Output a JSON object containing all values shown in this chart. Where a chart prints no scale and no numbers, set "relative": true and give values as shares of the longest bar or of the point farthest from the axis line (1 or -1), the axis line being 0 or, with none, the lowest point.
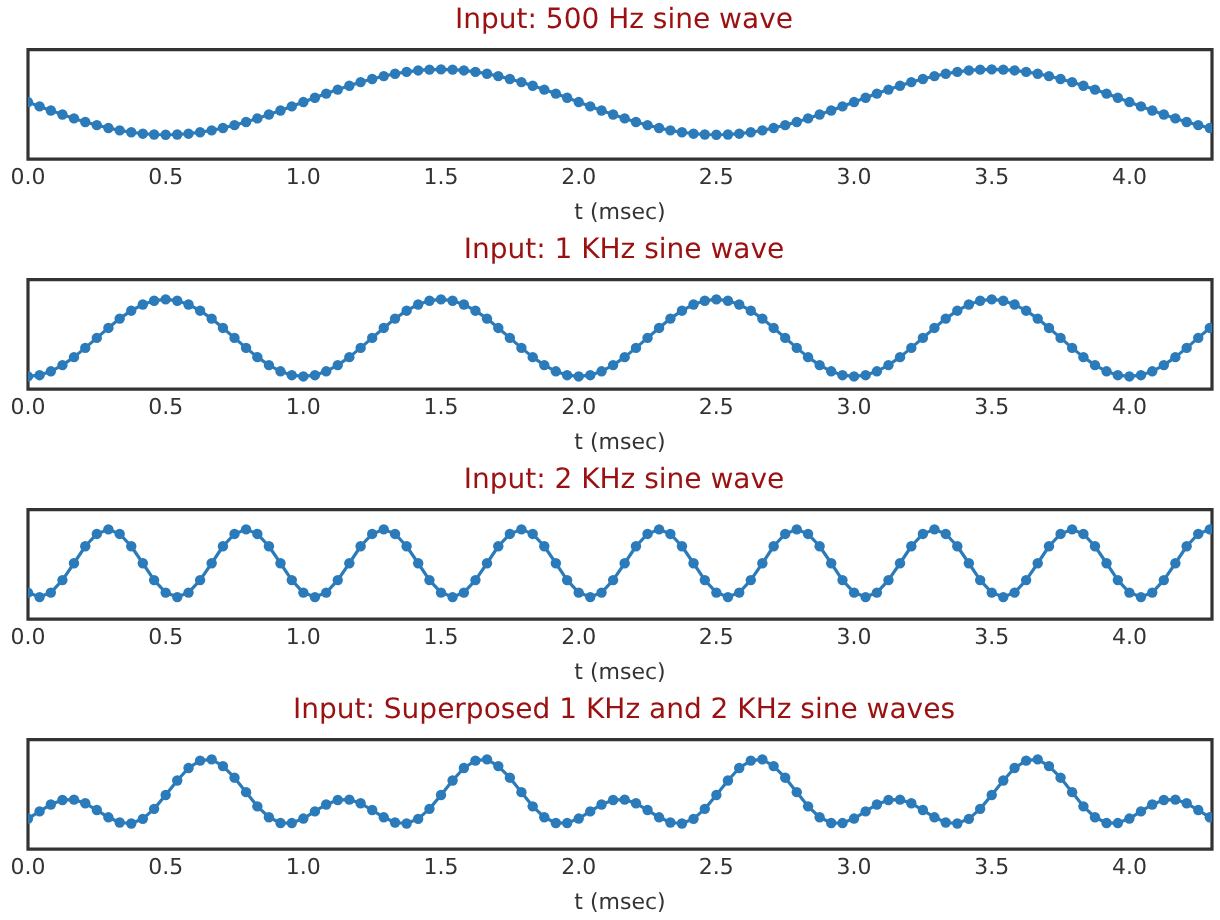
{
  "chart_data": [
    {
      "type": "line",
      "title": "Input: 500 Hz sine wave",
      "xlabel": "t (msec)",
      "relative": true,
      "marker": "circle",
      "line_style": "solid",
      "tick_labels": "x",
      "xlim": [
        0,
        4.3
      ],
      "xticks": [
        {
          "value": 0,
          "label": "0.0"
        },
        {
          "value": 0.5,
          "label": "0.5"
        },
        {
          "value": 1,
          "label": "1.0"
        },
        {
          "value": 1.5,
          "label": "1.5"
        },
        {
          "value": 2,
          "label": "2.0"
        },
        {
          "value": 2.5,
          "label": "2.5"
        },
        {
          "value": 3,
          "label": "3.0"
        },
        {
          "value": 3.5,
          "label": "3.5"
        },
        {
          "value": 4,
          "label": "4.0"
        }
      ],
      "x": [
        0,
        0.042,
        0.083,
        0.125,
        0.167,
        0.208,
        0.25,
        0.292,
        0.333,
        0.375,
        0.417,
        0.458,
        0.5,
        0.542,
        0.583,
        0.625,
        0.667,
        0.708,
        0.75,
        0.792,
        0.833,
        0.875,
        0.917,
        0.958,
        1,
        1.042,
        1.083,
        1.125,
        1.167,
        1.208,
        1.25,
        1.292,
        1.333,
        1.375,
        1.417,
        1.458,
        1.5,
        1.542,
        1.583,
        1.625,
        1.667,
        1.708,
        1.75,
        1.792,
        1.833,
        1.875,
        1.917,
        1.958,
        2,
        2.042,
        2.083,
        2.125,
        2.167,
        2.208,
        2.25,
        2.292,
        2.333,
        2.375,
        2.417,
        2.458,
        2.5,
        2.542,
        2.583,
        2.625,
        2.667,
        2.708,
        2.75,
        2.792,
        2.833,
        2.875,
        2.917,
        2.958,
        3,
        3.042,
        3.083,
        3.125,
        3.167,
        3.208,
        3.25,
        3.292,
        3.333,
        3.375,
        3.417,
        3.458,
        3.5,
        3.542,
        3.583,
        3.625,
        3.667,
        3.708,
        3.75,
        3.792,
        3.833,
        3.875,
        3.917,
        3.958,
        4,
        4.042,
        4.083,
        4.125,
        4.167,
        4.208,
        4.25,
        4.292
      ],
      "series": [
        {
          "color": "#2b7bba",
          "values": [
            0.636,
            0.588,
            0.542,
            0.497,
            0.454,
            0.414,
            0.379,
            0.347,
            0.321,
            0.3,
            0.284,
            0.275,
            0.272,
            0.275,
            0.284,
            0.3,
            0.321,
            0.347,
            0.379,
            0.414,
            0.454,
            0.497,
            0.542,
            0.588,
            0.636,
            0.684,
            0.73,
            0.775,
            0.818,
            0.858,
            0.893,
            0.925,
            0.951,
            0.972,
            0.988,
            0.997,
            1,
            0.997,
            0.988,
            0.972,
            0.951,
            0.925,
            0.893,
            0.858,
            0.818,
            0.775,
            0.73,
            0.684,
            0.636,
            0.588,
            0.542,
            0.497,
            0.454,
            0.414,
            0.379,
            0.347,
            0.321,
            0.3,
            0.284,
            0.275,
            0.272,
            0.275,
            0.284,
            0.3,
            0.321,
            0.347,
            0.379,
            0.414,
            0.454,
            0.497,
            0.542,
            0.588,
            0.636,
            0.684,
            0.73,
            0.775,
            0.818,
            0.858,
            0.893,
            0.925,
            0.951,
            0.972,
            0.988,
            0.997,
            1,
            0.997,
            0.988,
            0.972,
            0.951,
            0.925,
            0.893,
            0.858,
            0.818,
            0.775,
            0.73,
            0.684,
            0.636,
            0.588,
            0.542,
            0.497,
            0.454,
            0.414,
            0.379,
            0.347
          ]
        }
      ]
    },
    {
      "type": "line",
      "title": "Input: 1 KHz sine wave",
      "xlabel": "t (msec)",
      "relative": true,
      "marker": "circle",
      "line_style": "solid",
      "tick_labels": "x",
      "xlim": [
        0,
        4.3
      ],
      "xticks": [
        {
          "value": 0,
          "label": "0.0"
        },
        {
          "value": 0.5,
          "label": "0.5"
        },
        {
          "value": 1,
          "label": "1.0"
        },
        {
          "value": 1.5,
          "label": "1.5"
        },
        {
          "value": 2,
          "label": "2.0"
        },
        {
          "value": 2.5,
          "label": "2.5"
        },
        {
          "value": 3,
          "label": "3.0"
        },
        {
          "value": 3.5,
          "label": "3.5"
        },
        {
          "value": 4,
          "label": "4.0"
        }
      ],
      "x": [
        0,
        0.042,
        0.083,
        0.125,
        0.167,
        0.208,
        0.25,
        0.292,
        0.333,
        0.375,
        0.417,
        0.458,
        0.5,
        0.542,
        0.583,
        0.625,
        0.667,
        0.708,
        0.75,
        0.792,
        0.833,
        0.875,
        0.917,
        0.958,
        1,
        1.042,
        1.083,
        1.125,
        1.167,
        1.208,
        1.25,
        1.292,
        1.333,
        1.375,
        1.417,
        1.458,
        1.5,
        1.542,
        1.583,
        1.625,
        1.667,
        1.708,
        1.75,
        1.792,
        1.833,
        1.875,
        1.917,
        1.958,
        2,
        2.042,
        2.083,
        2.125,
        2.167,
        2.208,
        2.25,
        2.292,
        2.333,
        2.375,
        2.417,
        2.458,
        2.5,
        2.542,
        2.583,
        2.625,
        2.667,
        2.708,
        2.75,
        2.792,
        2.833,
        2.875,
        2.917,
        2.958,
        3,
        3.042,
        3.083,
        3.125,
        3.167,
        3.208,
        3.25,
        3.292,
        3.333,
        3.375,
        3.417,
        3.458,
        3.5,
        3.542,
        3.583,
        3.625,
        3.667,
        3.708,
        3.75,
        3.792,
        3.833,
        3.875,
        3.917,
        3.958,
        4,
        4.042,
        4.083,
        4.125,
        4.167,
        4.208,
        4.25,
        4.292
      ],
      "series": [
        {
          "color": "#2b7bba",
          "values": [
            0.142,
            0.156,
            0.199,
            0.268,
            0.357,
            0.46,
            0.571,
            0.682,
            0.786,
            0.874,
            0.943,
            0.985,
            1,
            0.985,
            0.943,
            0.874,
            0.786,
            0.682,
            0.571,
            0.46,
            0.357,
            0.268,
            0.199,
            0.156,
            0.142,
            0.156,
            0.199,
            0.268,
            0.357,
            0.46,
            0.571,
            0.682,
            0.786,
            0.874,
            0.943,
            0.985,
            1,
            0.985,
            0.943,
            0.874,
            0.786,
            0.682,
            0.571,
            0.46,
            0.357,
            0.268,
            0.199,
            0.156,
            0.142,
            0.156,
            0.199,
            0.268,
            0.357,
            0.46,
            0.571,
            0.682,
            0.786,
            0.874,
            0.943,
            0.985,
            1,
            0.985,
            0.943,
            0.874,
            0.786,
            0.682,
            0.571,
            0.46,
            0.357,
            0.268,
            0.199,
            0.156,
            0.142,
            0.156,
            0.199,
            0.268,
            0.357,
            0.46,
            0.571,
            0.682,
            0.786,
            0.874,
            0.943,
            0.985,
            1,
            0.985,
            0.943,
            0.874,
            0.786,
            0.682,
            0.571,
            0.46,
            0.357,
            0.268,
            0.199,
            0.156,
            0.142,
            0.156,
            0.199,
            0.268,
            0.357,
            0.46,
            0.571,
            0.682
          ]
        }
      ]
    },
    {
      "type": "line",
      "title": "Input: 2 KHz sine wave",
      "xlabel": "t (msec)",
      "relative": true,
      "marker": "circle",
      "line_style": "solid",
      "tick_labels": "x",
      "xlim": [
        0,
        4.3
      ],
      "xticks": [
        {
          "value": 0,
          "label": "0.0"
        },
        {
          "value": 0.5,
          "label": "0.5"
        },
        {
          "value": 1,
          "label": "1.0"
        },
        {
          "value": 1.5,
          "label": "1.5"
        },
        {
          "value": 2,
          "label": "2.0"
        },
        {
          "value": 2.5,
          "label": "2.5"
        },
        {
          "value": 3,
          "label": "3.0"
        },
        {
          "value": 3.5,
          "label": "3.5"
        },
        {
          "value": 4,
          "label": "4.0"
        }
      ],
      "x": [
        0,
        0.042,
        0.083,
        0.125,
        0.167,
        0.208,
        0.25,
        0.292,
        0.333,
        0.375,
        0.417,
        0.458,
        0.5,
        0.542,
        0.583,
        0.625,
        0.667,
        0.708,
        0.75,
        0.792,
        0.833,
        0.875,
        0.917,
        0.958,
        1,
        1.042,
        1.083,
        1.125,
        1.167,
        1.208,
        1.25,
        1.292,
        1.333,
        1.375,
        1.417,
        1.458,
        1.5,
        1.542,
        1.583,
        1.625,
        1.667,
        1.708,
        1.75,
        1.792,
        1.833,
        1.875,
        1.917,
        1.958,
        2,
        2.042,
        2.083,
        2.125,
        2.167,
        2.208,
        2.25,
        2.292,
        2.333,
        2.375,
        2.417,
        2.458,
        2.5,
        2.542,
        2.583,
        2.625,
        2.667,
        2.708,
        2.75,
        2.792,
        2.833,
        2.875,
        2.917,
        2.958,
        3,
        3.042,
        3.083,
        3.125,
        3.167,
        3.208,
        3.25,
        3.292,
        3.333,
        3.375,
        3.417,
        3.458,
        3.5,
        3.542,
        3.583,
        3.625,
        3.667,
        3.708,
        3.75,
        3.792,
        3.833,
        3.875,
        3.917,
        3.958,
        4,
        4.042,
        4.083,
        4.125,
        4.167,
        4.208,
        4.25,
        4.292
      ],
      "series": [
        {
          "color": "#2b7bba",
          "values": [
            0.296,
            0.246,
            0.296,
            0.435,
            0.623,
            0.812,
            0.949,
            1,
            0.949,
            0.812,
            0.623,
            0.435,
            0.296,
            0.246,
            0.296,
            0.435,
            0.623,
            0.812,
            0.949,
            1,
            0.949,
            0.812,
            0.623,
            0.435,
            0.296,
            0.246,
            0.296,
            0.435,
            0.623,
            0.812,
            0.949,
            1,
            0.949,
            0.812,
            0.623,
            0.435,
            0.296,
            0.246,
            0.296,
            0.435,
            0.623,
            0.812,
            0.949,
            1,
            0.949,
            0.812,
            0.623,
            0.435,
            0.296,
            0.246,
            0.296,
            0.435,
            0.623,
            0.812,
            0.949,
            1,
            0.949,
            0.812,
            0.623,
            0.435,
            0.296,
            0.246,
            0.296,
            0.435,
            0.623,
            0.812,
            0.949,
            1,
            0.949,
            0.812,
            0.623,
            0.435,
            0.296,
            0.246,
            0.296,
            0.435,
            0.623,
            0.812,
            0.949,
            1,
            0.949,
            0.812,
            0.623,
            0.435,
            0.296,
            0.246,
            0.296,
            0.435,
            0.623,
            0.812,
            0.949,
            1,
            0.949,
            0.812,
            0.623,
            0.435,
            0.296,
            0.246,
            0.296,
            0.435,
            0.623,
            0.812,
            0.949,
            1
          ]
        }
      ]
    },
    {
      "type": "line",
      "title": "Input: Superposed 1 KHz and 2 KHz sine waves",
      "xlabel": "t (msec)",
      "relative": true,
      "marker": "circle",
      "line_style": "solid",
      "tick_labels": "x",
      "xlim": [
        0,
        4.3
      ],
      "xticks": [
        {
          "value": 0,
          "label": "0.0"
        },
        {
          "value": 0.5,
          "label": "0.5"
        },
        {
          "value": 1,
          "label": "1.0"
        },
        {
          "value": 1.5,
          "label": "1.5"
        },
        {
          "value": 2,
          "label": "2.0"
        },
        {
          "value": 2.5,
          "label": "2.5"
        },
        {
          "value": 3,
          "label": "3.0"
        },
        {
          "value": 3.5,
          "label": "3.5"
        },
        {
          "value": 4,
          "label": "4.0"
        }
      ],
      "x": [
        0,
        0.042,
        0.083,
        0.125,
        0.167,
        0.208,
        0.25,
        0.292,
        0.333,
        0.375,
        0.417,
        0.458,
        0.5,
        0.542,
        0.583,
        0.625,
        0.667,
        0.708,
        0.75,
        0.792,
        0.833,
        0.875,
        0.917,
        0.958,
        1,
        1.042,
        1.083,
        1.125,
        1.167,
        1.208,
        1.25,
        1.292,
        1.333,
        1.375,
        1.417,
        1.458,
        1.5,
        1.542,
        1.583,
        1.625,
        1.667,
        1.708,
        1.75,
        1.792,
        1.833,
        1.875,
        1.917,
        1.958,
        2,
        2.042,
        2.083,
        2.125,
        2.167,
        2.208,
        2.25,
        2.292,
        2.333,
        2.375,
        2.417,
        2.458,
        2.5,
        2.542,
        2.583,
        2.625,
        2.667,
        2.708,
        2.75,
        2.792,
        2.833,
        2.875,
        2.917,
        2.958,
        3,
        3.042,
        3.083,
        3.125,
        3.167,
        3.208,
        3.25,
        3.292,
        3.333,
        3.375,
        3.417,
        3.458,
        3.5,
        3.542,
        3.583,
        3.625,
        3.667,
        3.708,
        3.75,
        3.792,
        3.833,
        3.875,
        3.917,
        3.958,
        4,
        4.042,
        4.083,
        4.125,
        4.167,
        4.208,
        4.25,
        4.292
      ],
      "series": [
        {
          "color": "#2b7bba",
          "values": [
            0.341,
            0.421,
            0.498,
            0.548,
            0.552,
            0.511,
            0.436,
            0.355,
            0.297,
            0.286,
            0.338,
            0.449,
            0.603,
            0.765,
            0.904,
            0.986,
            1,
            0.925,
            0.796,
            0.635,
            0.477,
            0.356,
            0.292,
            0.291,
            0.341,
            0.421,
            0.498,
            0.548,
            0.552,
            0.511,
            0.436,
            0.355,
            0.297,
            0.286,
            0.338,
            0.449,
            0.603,
            0.765,
            0.904,
            0.986,
            1,
            0.925,
            0.796,
            0.635,
            0.477,
            0.356,
            0.292,
            0.291,
            0.341,
            0.421,
            0.498,
            0.548,
            0.552,
            0.511,
            0.436,
            0.355,
            0.297,
            0.286,
            0.338,
            0.449,
            0.603,
            0.765,
            0.904,
            0.986,
            1,
            0.925,
            0.796,
            0.635,
            0.477,
            0.356,
            0.292,
            0.291,
            0.341,
            0.421,
            0.498,
            0.548,
            0.552,
            0.511,
            0.436,
            0.355,
            0.297,
            0.286,
            0.338,
            0.449,
            0.603,
            0.765,
            0.904,
            0.986,
            1,
            0.925,
            0.796,
            0.635,
            0.477,
            0.356,
            0.292,
            0.291,
            0.341,
            0.421,
            0.498,
            0.548,
            0.552,
            0.511,
            0.436,
            0.355
          ]
        }
      ]
    }
  ]
}
